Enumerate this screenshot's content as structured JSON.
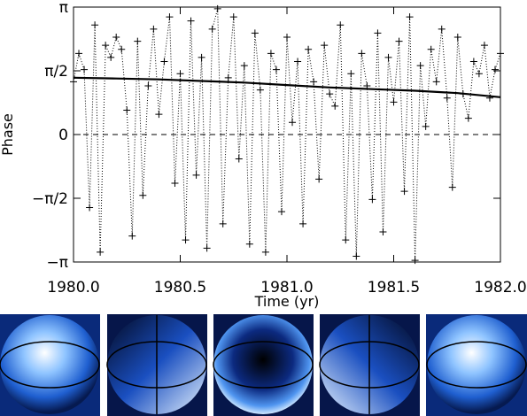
{
  "chart_data": {
    "type": "scatter",
    "x_label": "Time (yr)",
    "y_label": "Phase",
    "xlim": [
      1980.0,
      1982.0
    ],
    "xticks": [
      {
        "value": 1980.0,
        "label": "1980.0"
      },
      1980.5,
      {
        "value": 1981.0,
        "label": "1981.0"
      },
      1981.5,
      {
        "value": 1982.0,
        "label": "1982.0"
      }
    ],
    "ylim": [
      -3.14159,
      3.14159
    ],
    "yticks": [
      {
        "value": -3.14159,
        "label": "−π"
      },
      {
        "value": -1.5708,
        "label": "−π/2"
      },
      0,
      {
        "value": 1.5708,
        "label": "π/2"
      },
      {
        "value": 3.14159,
        "label": "π"
      }
    ],
    "series": [
      {
        "color": "#000000",
        "marker": "+",
        "line": "dotted",
        "x": [
          1980.0,
          1980.025,
          1980.05,
          1980.075,
          1980.1,
          1980.125,
          1980.15,
          1980.175,
          1980.2,
          1980.225,
          1980.25,
          1980.275,
          1980.3,
          1980.325,
          1980.35,
          1980.375,
          1980.4,
          1980.425,
          1980.45,
          1980.475,
          1980.5,
          1980.525,
          1980.55,
          1980.575,
          1980.6,
          1980.625,
          1980.65,
          1980.675,
          1980.7,
          1980.725,
          1980.75,
          1980.775,
          1980.8,
          1980.825,
          1980.85,
          1980.875,
          1980.9,
          1980.925,
          1980.95,
          1980.975,
          1981.0,
          1981.025,
          1981.05,
          1981.075,
          1981.1,
          1981.125,
          1981.15,
          1981.175,
          1981.2,
          1981.225,
          1981.25,
          1981.275,
          1981.3,
          1981.325,
          1981.35,
          1981.375,
          1981.4,
          1981.425,
          1981.45,
          1981.475,
          1981.5,
          1981.525,
          1981.55,
          1981.575,
          1981.6,
          1981.625,
          1981.65,
          1981.675,
          1981.7,
          1981.725,
          1981.75,
          1981.775,
          1981.8,
          1981.825,
          1981.85,
          1981.875,
          1981.9,
          1981.925,
          1981.95,
          1981.975,
          1982.0
        ],
        "values": [
          1.3,
          2.0,
          1.6,
          -1.8,
          2.7,
          -2.9,
          2.2,
          1.9,
          2.4,
          2.1,
          0.6,
          -2.5,
          2.3,
          -1.5,
          1.2,
          2.6,
          0.5,
          1.8,
          2.9,
          -1.2,
          1.5,
          -2.6,
          2.8,
          -1.0,
          1.9,
          -2.8,
          2.6,
          3.1,
          -2.2,
          1.4,
          2.9,
          -0.6,
          1.7,
          -2.7,
          2.5,
          1.1,
          -2.9,
          2.0,
          1.6,
          -1.9,
          2.4,
          0.3,
          1.8,
          -2.2,
          2.1,
          1.3,
          -1.1,
          2.2,
          1.0,
          0.7,
          2.7,
          -2.6,
          1.5,
          -3.0,
          2.0,
          1.2,
          -1.6,
          2.5,
          -2.4,
          1.9,
          0.8,
          2.3,
          -1.4,
          2.9,
          -3.1,
          1.7,
          0.2,
          2.1,
          1.3,
          2.6,
          0.9,
          -1.3,
          2.4,
          1.0,
          0.4,
          1.8,
          1.5,
          2.2,
          0.9,
          1.6,
          2.0
        ]
      },
      {
        "color": "#000000",
        "line": "solid",
        "x": [
          1980.0,
          1980.2,
          1980.4,
          1980.6,
          1980.8,
          1981.0,
          1981.2,
          1981.4,
          1981.6,
          1981.8,
          1982.0
        ],
        "values": [
          1.4,
          1.38,
          1.36,
          1.32,
          1.28,
          1.22,
          1.16,
          1.12,
          1.08,
          1.02,
          0.92
        ]
      }
    ]
  }
}
